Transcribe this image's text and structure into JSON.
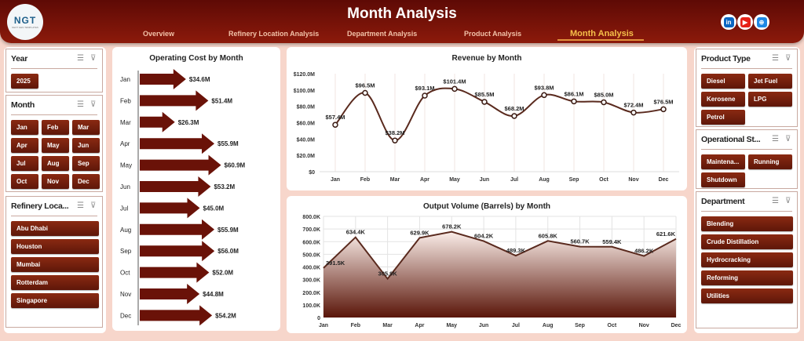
{
  "header": {
    "title": "Month Analysis",
    "logo_text": "NGT",
    "logo_subtext": "NEXT GEN TEMPLATES",
    "nav": [
      {
        "label": "Overview"
      },
      {
        "label": "Refinery Location Analysis"
      },
      {
        "label": "Department Analysis"
      },
      {
        "label": "Product Analysis"
      },
      {
        "label": "Month Analysis",
        "active": true
      }
    ],
    "social": [
      {
        "icon": "linkedin-icon",
        "label": "in",
        "color": "#0a66c2"
      },
      {
        "icon": "youtube-icon",
        "label": "▶",
        "color": "#e62117"
      },
      {
        "icon": "globe-icon",
        "label": "⊕",
        "color": "#1e88e5"
      }
    ]
  },
  "slicers_left": [
    {
      "title": "Year",
      "items": [
        "2025"
      ]
    },
    {
      "title": "Month",
      "items": [
        "Jan",
        "Feb",
        "Mar",
        "Apr",
        "May",
        "Jun",
        "Jul",
        "Aug",
        "Sep",
        "Oct",
        "Nov",
        "Dec"
      ]
    },
    {
      "title": "Refinery Loca...",
      "items": [
        "Abu Dhabi",
        "Houston",
        "Mumbai",
        "Rotterdam",
        "Singapore"
      ]
    }
  ],
  "slicers_right": [
    {
      "title": "Product Type",
      "items": [
        "Diesel",
        "Jet Fuel",
        "Kerosene",
        "LPG",
        "Petrol"
      ]
    },
    {
      "title": "Operational St...",
      "items": [
        "Maintena...",
        "Running",
        "Shutdown"
      ]
    },
    {
      "title": "Department",
      "items": [
        "Blending",
        "Crude Distillation",
        "Hydrocracking",
        "Reforming",
        "Utilities"
      ]
    }
  ],
  "colors": {
    "accent": "#6b1a0c",
    "header": "#7a1208",
    "background": "#f7d6cb"
  },
  "chart_data": [
    {
      "type": "bar",
      "title": "Operating Cost by Month",
      "categories": [
        "Jan",
        "Feb",
        "Mar",
        "Apr",
        "May",
        "Jun",
        "Jul",
        "Aug",
        "Sep",
        "Oct",
        "Nov",
        "Dec"
      ],
      "values": [
        34.6,
        51.4,
        26.3,
        55.9,
        60.9,
        53.2,
        45.0,
        55.9,
        56.0,
        52.0,
        44.8,
        54.2
      ],
      "labels": [
        "$34.6M",
        "$51.4M",
        "$26.3M",
        "$55.9M",
        "$60.9M",
        "$53.2M",
        "$45.0M",
        "$55.9M",
        "$56.0M",
        "$52.0M",
        "$44.8M",
        "$54.2M"
      ],
      "orientation": "horizontal",
      "unit": "$M"
    },
    {
      "type": "line",
      "title": "Revenue by Month",
      "categories": [
        "Jan",
        "Feb",
        "Mar",
        "Apr",
        "May",
        "Jun",
        "Jul",
        "Aug",
        "Sep",
        "Oct",
        "Nov",
        "Dec"
      ],
      "values": [
        57.4,
        96.5,
        38.2,
        93.1,
        101.4,
        85.5,
        68.2,
        93.8,
        86.1,
        85.0,
        72.4,
        76.5
      ],
      "labels": [
        "$57.4M",
        "$96.5M",
        "$38.2M",
        "$93.1M",
        "$101.4M",
        "$85.5M",
        "$68.2M",
        "$93.8M",
        "$86.1M",
        "$85.0M",
        "$72.4M",
        "$76.5M"
      ],
      "ylim": [
        0,
        120
      ],
      "yticks": [
        "$0",
        "$20.0M",
        "$40.0M",
        "$60.0M",
        "$80.0M",
        "$100.0M",
        "$120.0M"
      ],
      "smooth": true
    },
    {
      "type": "area",
      "title": "Output Volume (Barrels) by Month",
      "categories": [
        "Jan",
        "Feb",
        "Mar",
        "Apr",
        "May",
        "Jun",
        "Jul",
        "Aug",
        "Sep",
        "Oct",
        "Nov",
        "Dec"
      ],
      "values": [
        391.5,
        634.4,
        305.9,
        629.9,
        678.2,
        604.2,
        489.3,
        605.8,
        560.7,
        559.4,
        486.2,
        621.6
      ],
      "labels": [
        "391.5K",
        "634.4K",
        "305.9K",
        "629.9K",
        "678.2K",
        "604.2K",
        "489.3K",
        "605.8K",
        "560.7K",
        "559.4K",
        "486.2K",
        "621.6K"
      ],
      "ylim": [
        0,
        800
      ],
      "yticks": [
        "0",
        "100.0K",
        "200.0K",
        "300.0K",
        "400.0K",
        "500.0K",
        "600.0K",
        "700.0K",
        "800.0K"
      ]
    }
  ]
}
